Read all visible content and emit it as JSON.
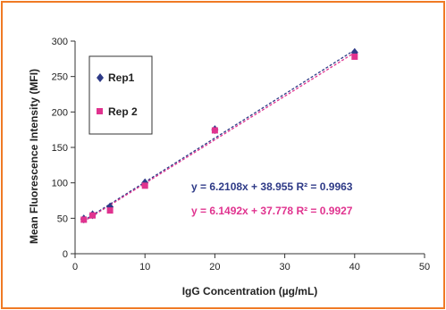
{
  "chart_data": {
    "type": "scatter",
    "xlabel": "IgG Concentration (µg/mL)",
    "ylabel": "Mean Fluorescence Intensity (MFI)",
    "xlim": [
      0,
      50
    ],
    "ylim": [
      0,
      300
    ],
    "x_ticks": [
      "0",
      "10",
      "20",
      "30",
      "40",
      "50"
    ],
    "y_ticks": [
      "0",
      "50",
      "100",
      "150",
      "200",
      "250",
      "300"
    ],
    "grid": false,
    "legend": {
      "placement": "top-left",
      "box": true
    },
    "series": [
      {
        "name": "Rep1",
        "color": "#2e3a87",
        "marker": "diamond",
        "points": [
          [
            1.25,
            49
          ],
          [
            2.5,
            55
          ],
          [
            5,
            66
          ],
          [
            10,
            100
          ],
          [
            20,
            175
          ],
          [
            40,
            284
          ]
        ],
        "trendline": {
          "slope": 6.2108,
          "intercept": 38.955,
          "style": "dashed"
        },
        "equation": "y = 6.2108x + 38.955 R² = 0.9963"
      },
      {
        "name": "Rep 2",
        "color": "#e0338f",
        "marker": "square",
        "points": [
          [
            1.25,
            48
          ],
          [
            2.5,
            54
          ],
          [
            5,
            61
          ],
          [
            10,
            96
          ],
          [
            20,
            174
          ],
          [
            40,
            278
          ]
        ],
        "trendline": {
          "slope": 6.1492,
          "intercept": 37.778,
          "style": "dashed"
        },
        "equation": "y = 6.1492x + 37.778 R² = 0.9927"
      }
    ]
  }
}
